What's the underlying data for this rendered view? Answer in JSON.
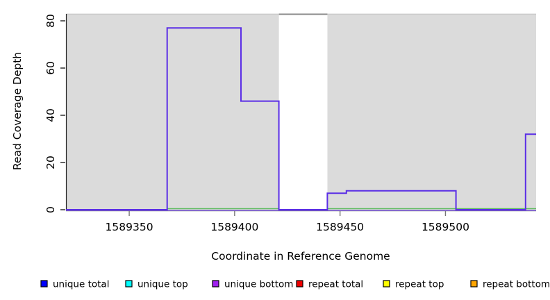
{
  "chart_data": {
    "type": "step",
    "title": "",
    "xlabel": "Coordinate in Reference Genome",
    "ylabel": "Read Coverage Depth",
    "xlim": [
      1589320,
      1589543
    ],
    "ylim": [
      0,
      83
    ],
    "xticks": [
      "1589350",
      "1589400",
      "1589450",
      "1589500"
    ],
    "xtick_values": [
      1589350,
      1589400,
      1589450,
      1589500
    ],
    "yticks": [
      "0",
      "20",
      "40",
      "60",
      "80"
    ],
    "ytick_values": [
      0,
      20,
      40,
      60,
      80
    ],
    "grid": false,
    "legend_position": "bottom",
    "plot_bg_color": "#ffffff",
    "region_color": "#dbdbdb",
    "no_data_gap": [
      1589421,
      1589444
    ],
    "background_regions": [
      {
        "x0": 1589320,
        "x1": 1589421,
        "y1": 83,
        "color": "#dbdbdb"
      },
      {
        "x0": 1589444,
        "x1": 1589543,
        "y1": 83,
        "color": "#dbdbdb"
      }
    ],
    "gap_cap_line": {
      "x0": 1589421,
      "x1": 1589444,
      "y": 82.8,
      "color": "#8a8a8a"
    },
    "series": [
      {
        "name": "total-baseline",
        "color": "#8f6cf0",
        "width": 1.6,
        "points": [
          [
            1589320,
            -0.3
          ],
          [
            1589543,
            -0.3
          ]
        ]
      },
      {
        "name": "top-baseline-left",
        "color": "#5ebc5e",
        "width": 1.6,
        "points": [
          [
            1589368,
            0.45
          ],
          [
            1589421,
            0.45
          ]
        ]
      },
      {
        "name": "top-baseline-right",
        "color": "#5ebc5e",
        "width": 1.6,
        "points": [
          [
            1589444,
            0.45
          ],
          [
            1589543,
            0.45
          ]
        ]
      },
      {
        "name": "unique-bottom-coverage",
        "color": "#5b2ee6",
        "width": 2,
        "points": [
          [
            1589320,
            0
          ],
          [
            1589368,
            0
          ],
          [
            1589368,
            77
          ],
          [
            1589403,
            77
          ],
          [
            1589403,
            46
          ],
          [
            1589421,
            46
          ],
          [
            1589421,
            0
          ],
          [
            1589444,
            0
          ],
          [
            1589444,
            7
          ],
          [
            1589453,
            7
          ],
          [
            1589453,
            8
          ],
          [
            1589505,
            8
          ],
          [
            1589505,
            0
          ],
          [
            1589538,
            0
          ],
          [
            1589538,
            32
          ],
          [
            1589543,
            32
          ]
        ]
      }
    ],
    "step_levels": [
      {
        "from": 1589320,
        "to": 1589368,
        "depth": 0
      },
      {
        "from": 1589368,
        "to": 1589403,
        "depth": 77
      },
      {
        "from": 1589403,
        "to": 1589421,
        "depth": 46
      },
      {
        "from": 1589421,
        "to": 1589444,
        "depth": 0
      },
      {
        "from": 1589444,
        "to": 1589453,
        "depth": 7
      },
      {
        "from": 1589453,
        "to": 1589505,
        "depth": 8
      },
      {
        "from": 1589505,
        "to": 1589538,
        "depth": 0
      },
      {
        "from": 1589538,
        "to": 1589543,
        "depth": 32
      }
    ],
    "legend": [
      {
        "label": "unique total",
        "color": "#0000ff"
      },
      {
        "label": "unique top",
        "color": "#00ffff"
      },
      {
        "label": "unique bottom",
        "color": "#a020f0"
      },
      {
        "label": "repeat total",
        "color": "#ee0000"
      },
      {
        "label": "repeat top",
        "color": "#ffff00"
      },
      {
        "label": "repeat bottom",
        "color": "#ffa500"
      }
    ]
  }
}
